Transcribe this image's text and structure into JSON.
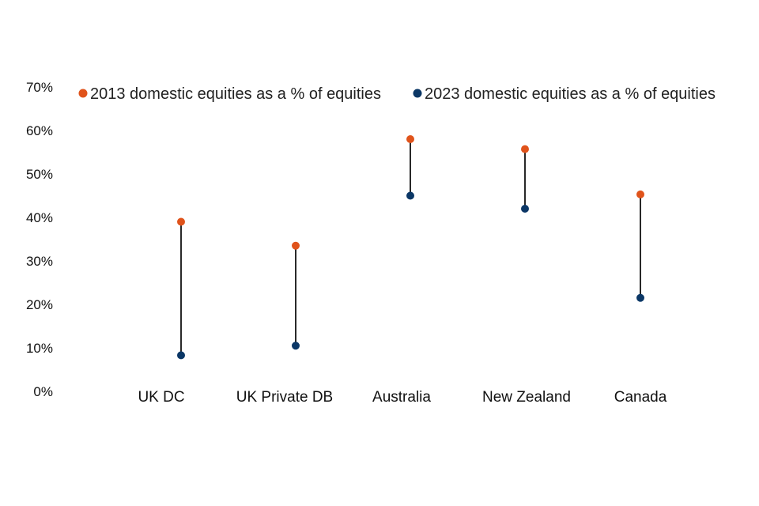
{
  "colors": {
    "series_2013": "#e0531b",
    "series_2023": "#0b3766",
    "connector": "#111111",
    "text": "#111111"
  },
  "chart_data": {
    "type": "scatter",
    "subtype": "dumbbell",
    "title": "",
    "xlabel": "",
    "ylabel": "",
    "ylim": [
      0,
      70
    ],
    "y_ticks": [
      "0%",
      "10%",
      "20%",
      "30%",
      "40%",
      "50%",
      "60%",
      "70%"
    ],
    "grid": false,
    "legend_position": "top",
    "categories": [
      "UK DC",
      "UK Private DB",
      "Australia",
      "New Zealand",
      "Canada"
    ],
    "series": [
      {
        "name": "2013 domestic equities as a % of equities",
        "values": [
          39,
          33.5,
          58,
          55.7,
          45.3
        ]
      },
      {
        "name": "2023 domestic equities as a % of equities",
        "values": [
          8.3,
          10.5,
          45,
          42,
          21.5
        ]
      }
    ]
  }
}
